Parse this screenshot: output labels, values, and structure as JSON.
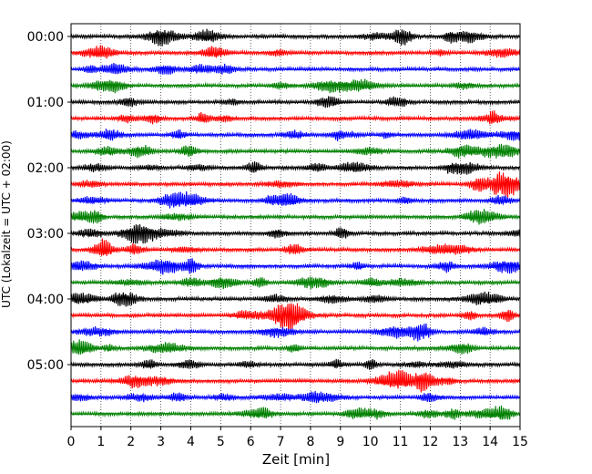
{
  "chart_data": {
    "type": "line",
    "title": "",
    "xlabel": "Zeit  [min]",
    "ylabel": "UTC (Lokalzeit = UTC + 02:00)",
    "xlim": [
      0,
      15
    ],
    "x_ticks": [
      "0",
      "1",
      "2",
      "3",
      "4",
      "5",
      "6",
      "7",
      "8",
      "9",
      "10",
      "11",
      "12",
      "13",
      "14",
      "15"
    ],
    "y_ticks": [
      "00:00",
      "01:00",
      "02:00",
      "03:00",
      "04:00",
      "05:00"
    ],
    "ylim_traces": [
      0,
      24
    ],
    "grid": "vertical dotted at each minute",
    "traces_per_hour": 4,
    "trace_minutes": 15,
    "color_cycle": [
      "#000000",
      "#ff0000",
      "#0000ff",
      "#008000"
    ],
    "series": [
      {
        "start": "00:00",
        "color": "#000000"
      },
      {
        "start": "00:15",
        "color": "#ff0000"
      },
      {
        "start": "00:30",
        "color": "#0000ff"
      },
      {
        "start": "00:45",
        "color": "#008000"
      },
      {
        "start": "01:00",
        "color": "#000000"
      },
      {
        "start": "01:15",
        "color": "#ff0000"
      },
      {
        "start": "01:30",
        "color": "#0000ff"
      },
      {
        "start": "01:45",
        "color": "#008000"
      },
      {
        "start": "02:00",
        "color": "#000000"
      },
      {
        "start": "02:15",
        "color": "#ff0000"
      },
      {
        "start": "02:30",
        "color": "#0000ff"
      },
      {
        "start": "02:45",
        "color": "#008000"
      },
      {
        "start": "03:00",
        "color": "#000000"
      },
      {
        "start": "03:15",
        "color": "#ff0000"
      },
      {
        "start": "03:30",
        "color": "#0000ff"
      },
      {
        "start": "03:45",
        "color": "#008000"
      },
      {
        "start": "04:00",
        "color": "#000000"
      },
      {
        "start": "04:15",
        "color": "#ff0000"
      },
      {
        "start": "04:30",
        "color": "#0000ff"
      },
      {
        "start": "04:45",
        "color": "#008000"
      },
      {
        "start": "05:00",
        "color": "#000000"
      },
      {
        "start": "05:15",
        "color": "#ff0000"
      },
      {
        "start": "05:30",
        "color": "#0000ff"
      },
      {
        "start": "05:45",
        "color": "#008000"
      }
    ]
  }
}
